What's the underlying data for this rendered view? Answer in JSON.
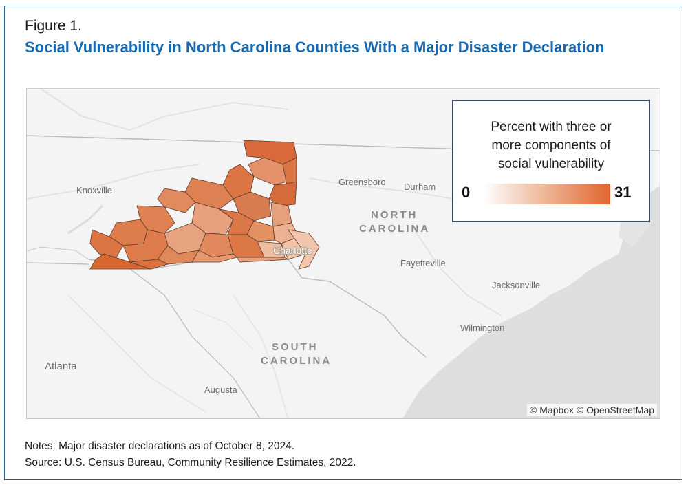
{
  "figure_label": "Figure 1.",
  "title": "Social Vulnerability in North Carolina Counties With a Major Disaster Declaration",
  "legend": {
    "title_lines": [
      "Percent with three or",
      "more components of",
      "social vulnerability"
    ],
    "min": "0",
    "max": "31",
    "color_low": "#ffffff",
    "color_high": "#e0652f"
  },
  "map": {
    "cities": [
      {
        "name": "Knoxville"
      },
      {
        "name": "Greensboro"
      },
      {
        "name": "Durham"
      },
      {
        "name": "Charlotte"
      },
      {
        "name": "Fayetteville"
      },
      {
        "name": "Jacksonville"
      },
      {
        "name": "Wilmington"
      },
      {
        "name": "Atlanta"
      },
      {
        "name": "Augusta"
      }
    ],
    "states": [
      {
        "line1": "NORTH",
        "line2": "CAROLINA"
      },
      {
        "line1": "SOUTH",
        "line2": "CAROLINA"
      }
    ],
    "attribution": "© Mapbox © OpenStreetMap"
  },
  "notes": {
    "line1": "Notes: Major disaster declarations as of October 8, 2024.",
    "line2": "Source: U.S. Census Bureau, Community Resilience Estimates, 2022."
  }
}
